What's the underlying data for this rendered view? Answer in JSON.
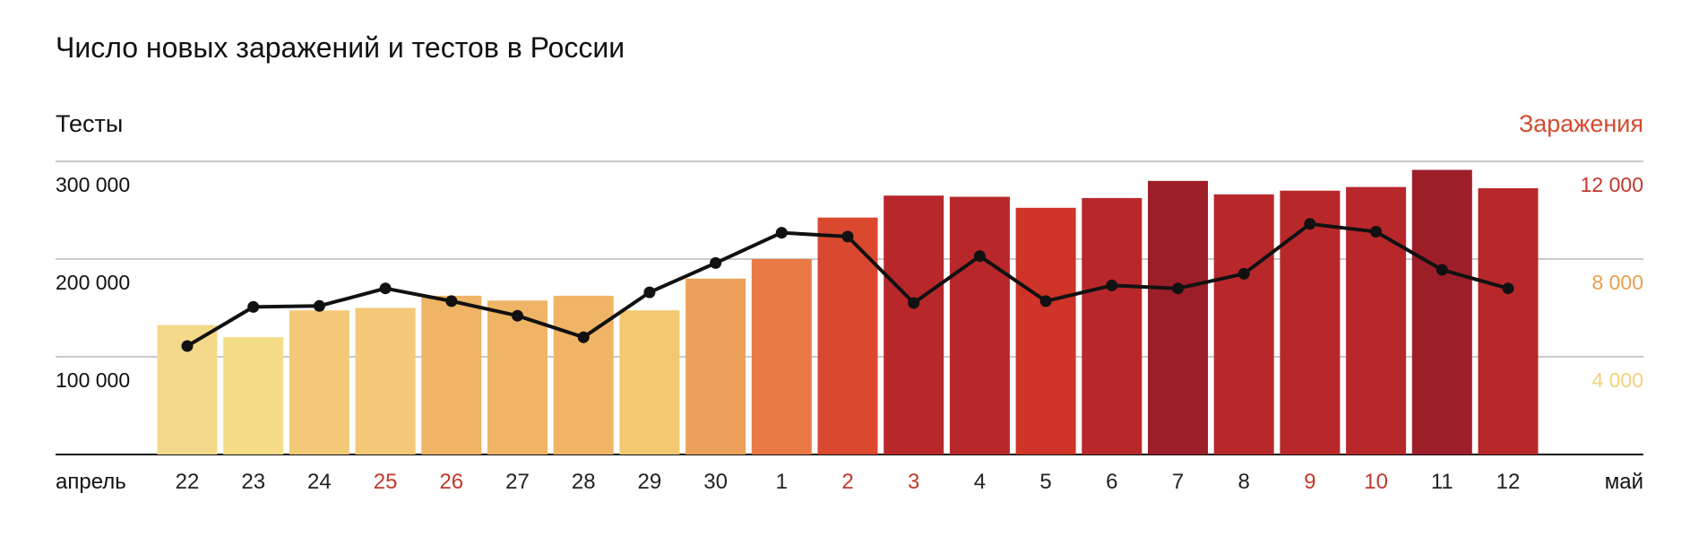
{
  "chart_data": {
    "type": "bar",
    "title": "Число новых заражений и тестов в России",
    "left_axis_title": "Тесты",
    "right_axis_title": "Заражения",
    "left_ticks": [
      {
        "value": 100000,
        "label": "100 000"
      },
      {
        "value": 200000,
        "label": "200 000"
      },
      {
        "value": 300000,
        "label": "300 000"
      }
    ],
    "right_ticks": [
      {
        "value": 4000,
        "label": "4 000",
        "color": "#f2d27a"
      },
      {
        "value": 8000,
        "label": "8 000",
        "color": "#e8a050"
      },
      {
        "value": 12000,
        "label": "12 000",
        "color": "#c0392b"
      }
    ],
    "left_ylim": [
      0,
      300000
    ],
    "right_ylim": [
      0,
      12000
    ],
    "x_start_label": "апрель",
    "x_end_label": "май",
    "grid": true,
    "categories": [
      "22",
      "23",
      "24",
      "25",
      "26",
      "27",
      "28",
      "29",
      "30",
      "1",
      "2",
      "3",
      "4",
      "5",
      "6",
      "7",
      "8",
      "9",
      "10",
      "11",
      "12"
    ],
    "category_colors": [
      "#222222",
      "#222222",
      "#222222",
      "#c0392b",
      "#c0392b",
      "#222222",
      "#222222",
      "#222222",
      "#222222",
      "#222222",
      "#c0392b",
      "#c0392b",
      "#222222",
      "#222222",
      "#222222",
      "#222222",
      "#222222",
      "#c0392b",
      "#c0392b",
      "#222222",
      "#222222"
    ],
    "series": [
      {
        "type": "bar",
        "axis": "right",
        "values": [
          5300,
          4800,
          5900,
          6000,
          6500,
          6300,
          6500,
          5900,
          7200,
          8000,
          9700,
          10600,
          10550,
          10100,
          10500,
          11200,
          10650,
          10800,
          10950,
          11650,
          10900
        ],
        "colors": [
          "#f5d98a",
          "#f5dc86",
          "#f4c978",
          "#f4c978",
          "#efb466",
          "#efb466",
          "#efb466",
          "#f2c870",
          "#eba15a",
          "#e97a45",
          "#d9482f",
          "#b8282a",
          "#b8282a",
          "#cf3429",
          "#b8282a",
          "#9c1e29",
          "#b8282a",
          "#b8282a",
          "#b8282a",
          "#9c1e29",
          "#b8282a"
        ]
      },
      {
        "type": "line",
        "axis": "left",
        "color": "#111111",
        "values": [
          111000,
          151000,
          152000,
          170000,
          157000,
          142000,
          120000,
          166000,
          196000,
          227000,
          223000,
          155000,
          203000,
          157000,
          173000,
          170000,
          185000,
          236000,
          228000,
          189000,
          170000
        ]
      }
    ]
  }
}
